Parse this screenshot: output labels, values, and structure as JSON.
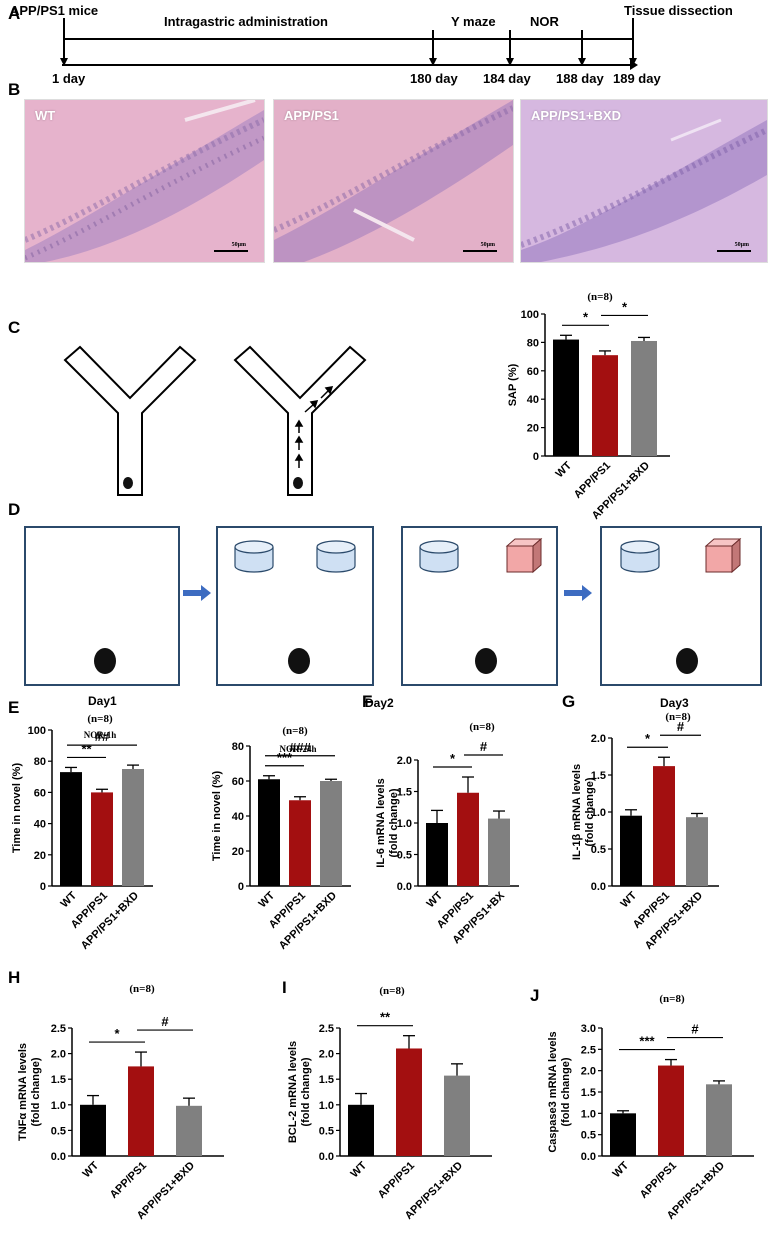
{
  "panels": {
    "A": "A",
    "B": "B",
    "C": "C",
    "D": "D",
    "E": "E",
    "F": "F",
    "G": "G",
    "H": "H",
    "I": "I",
    "J": "J"
  },
  "timeline": {
    "top_labels": [
      "APP/PS1 mice",
      "Intragastric administration",
      "Y maze",
      "NOR",
      "Tissue dissection"
    ],
    "days": [
      "1 day",
      "180 day",
      "184 day",
      "188 day",
      "189 day"
    ]
  },
  "micrographs": [
    {
      "label": "WT",
      "scale": "50μm"
    },
    {
      "label": "APP/PS1",
      "scale": "50μm"
    },
    {
      "label": "APP/PS1+BXD",
      "scale": "50μm"
    }
  ],
  "nor_days": [
    "Day1",
    "Day2",
    "Day3"
  ],
  "colors": {
    "wt": "#000000",
    "app": "#a30f10",
    "bxd": "#808080",
    "box_border": "#2b4a6b",
    "arrow": "#3d6cc1",
    "cylinder": "#cfe0f3",
    "cube": "#f2a7a7"
  },
  "chart_data": [
    {
      "id": "C",
      "type": "bar",
      "n_label": "(n=8)",
      "title": "",
      "ylabel": "SAP (%)",
      "ylim": [
        0,
        100
      ],
      "yticks": [
        "0",
        "20",
        "40",
        "60",
        "80",
        "100"
      ],
      "categories": [
        "WT",
        "APP/PS1",
        "APP/PS1+BXD"
      ],
      "values": [
        82,
        71,
        81
      ],
      "errors": [
        3,
        3,
        2.5
      ],
      "sig": [
        {
          "from": 0,
          "to": 1,
          "label": "*"
        },
        {
          "from": 1,
          "to": 2,
          "label": "*"
        }
      ]
    },
    {
      "id": "E1",
      "type": "bar",
      "n_label": "(n=8)",
      "title": "NOR-1h",
      "ylabel": "Time in novel (%)",
      "ylim": [
        0,
        100
      ],
      "yticks": [
        "0",
        "20",
        "40",
        "60",
        "80",
        "100"
      ],
      "categories": [
        "WT",
        "APP/PS1",
        "APP/PS1+BXD"
      ],
      "values": [
        73,
        60,
        75
      ],
      "errors": [
        3,
        2,
        2.5
      ],
      "sig": [
        {
          "from": 0,
          "to": 1,
          "label": "**"
        },
        {
          "from": 0,
          "to": 2,
          "label": "##"
        }
      ]
    },
    {
      "id": "E2",
      "type": "bar",
      "n_label": "(n=8)",
      "title": "NOR-24h",
      "ylabel": "Time in novel (%)",
      "ylim": [
        0,
        80
      ],
      "yticks": [
        "0",
        "20",
        "40",
        "60",
        "80"
      ],
      "categories": [
        "WT",
        "APP/PS1",
        "APP/PS1+BXD"
      ],
      "values": [
        61,
        49,
        60
      ],
      "errors": [
        2,
        2,
        1
      ],
      "sig": [
        {
          "from": 0,
          "to": 1,
          "label": "***"
        },
        {
          "from": 0,
          "to": 2,
          "label": "###"
        }
      ]
    },
    {
      "id": "F",
      "type": "bar",
      "n_label": "(n=8)",
      "title": "",
      "ylabel": "IL-6 mRNA levels\n(fold change)",
      "ylim": [
        0,
        2.0
      ],
      "yticks": [
        "0.0",
        "0.5",
        "1.0",
        "1.5",
        "2.0"
      ],
      "categories": [
        "WT",
        "APP/PS1",
        "APP/PS1+BX"
      ],
      "values": [
        1.0,
        1.48,
        1.07
      ],
      "errors": [
        0.2,
        0.25,
        0.12
      ],
      "sig": [
        {
          "from": 0,
          "to": 1,
          "label": "*"
        },
        {
          "from": 1,
          "to": 2,
          "label": "#"
        }
      ]
    },
    {
      "id": "G",
      "type": "bar",
      "n_label": "(n=8)",
      "title": "",
      "ylabel": "IL-1β mRNA levels\n(fold change)",
      "ylim": [
        0,
        2.0
      ],
      "yticks": [
        "0.0",
        "0.5",
        "1.0",
        "1.5",
        "2.0"
      ],
      "categories": [
        "WT",
        "APP/PS1",
        "APP/PS1+BXD"
      ],
      "values": [
        0.95,
        1.62,
        0.93
      ],
      "errors": [
        0.08,
        0.12,
        0.05
      ],
      "sig": [
        {
          "from": 0,
          "to": 1,
          "label": "*"
        },
        {
          "from": 1,
          "to": 2,
          "label": "#"
        }
      ]
    },
    {
      "id": "H",
      "type": "bar",
      "n_label": "(n=8)",
      "title": "",
      "ylabel": "TNFα mRNA levels\n(fold change)",
      "ylim": [
        0,
        2.5
      ],
      "yticks": [
        "0.0",
        "0.5",
        "1.0",
        "1.5",
        "2.0",
        "2.5"
      ],
      "categories": [
        "WT",
        "APP/PS1",
        "APP/PS1+BXD"
      ],
      "values": [
        1.0,
        1.75,
        0.98
      ],
      "errors": [
        0.18,
        0.28,
        0.15
      ],
      "sig": [
        {
          "from": 0,
          "to": 1,
          "label": "*"
        },
        {
          "from": 1,
          "to": 2,
          "label": "#"
        }
      ]
    },
    {
      "id": "I",
      "type": "bar",
      "n_label": "(n=8)",
      "title": "",
      "ylabel": "BCL-2 mRNA levels\n(fold change)",
      "ylim": [
        0,
        2.5
      ],
      "yticks": [
        "0.0",
        "0.5",
        "1.0",
        "1.5",
        "2.0",
        "2.5"
      ],
      "categories": [
        "WT",
        "APP/PS1",
        "APP/PS1+BXD"
      ],
      "values": [
        1.0,
        2.1,
        1.57
      ],
      "errors": [
        0.22,
        0.25,
        0.23
      ],
      "sig": [
        {
          "from": 0,
          "to": 1,
          "label": "**"
        }
      ]
    },
    {
      "id": "J",
      "type": "bar",
      "n_label": "(n=8)",
      "title": "",
      "ylabel": "Caspase3 mRNA levels\n(fold change)",
      "ylim": [
        0,
        3.0
      ],
      "yticks": [
        "0.0",
        "0.5",
        "1.0",
        "1.5",
        "2.0",
        "2.5",
        "3.0"
      ],
      "categories": [
        "WT",
        "APP/PS1",
        "APP/PS1+BXD"
      ],
      "values": [
        1.0,
        2.12,
        1.68
      ],
      "errors": [
        0.06,
        0.14,
        0.08
      ],
      "sig": [
        {
          "from": 0,
          "to": 1,
          "label": "***"
        },
        {
          "from": 1,
          "to": 2,
          "label": "#"
        }
      ]
    }
  ]
}
